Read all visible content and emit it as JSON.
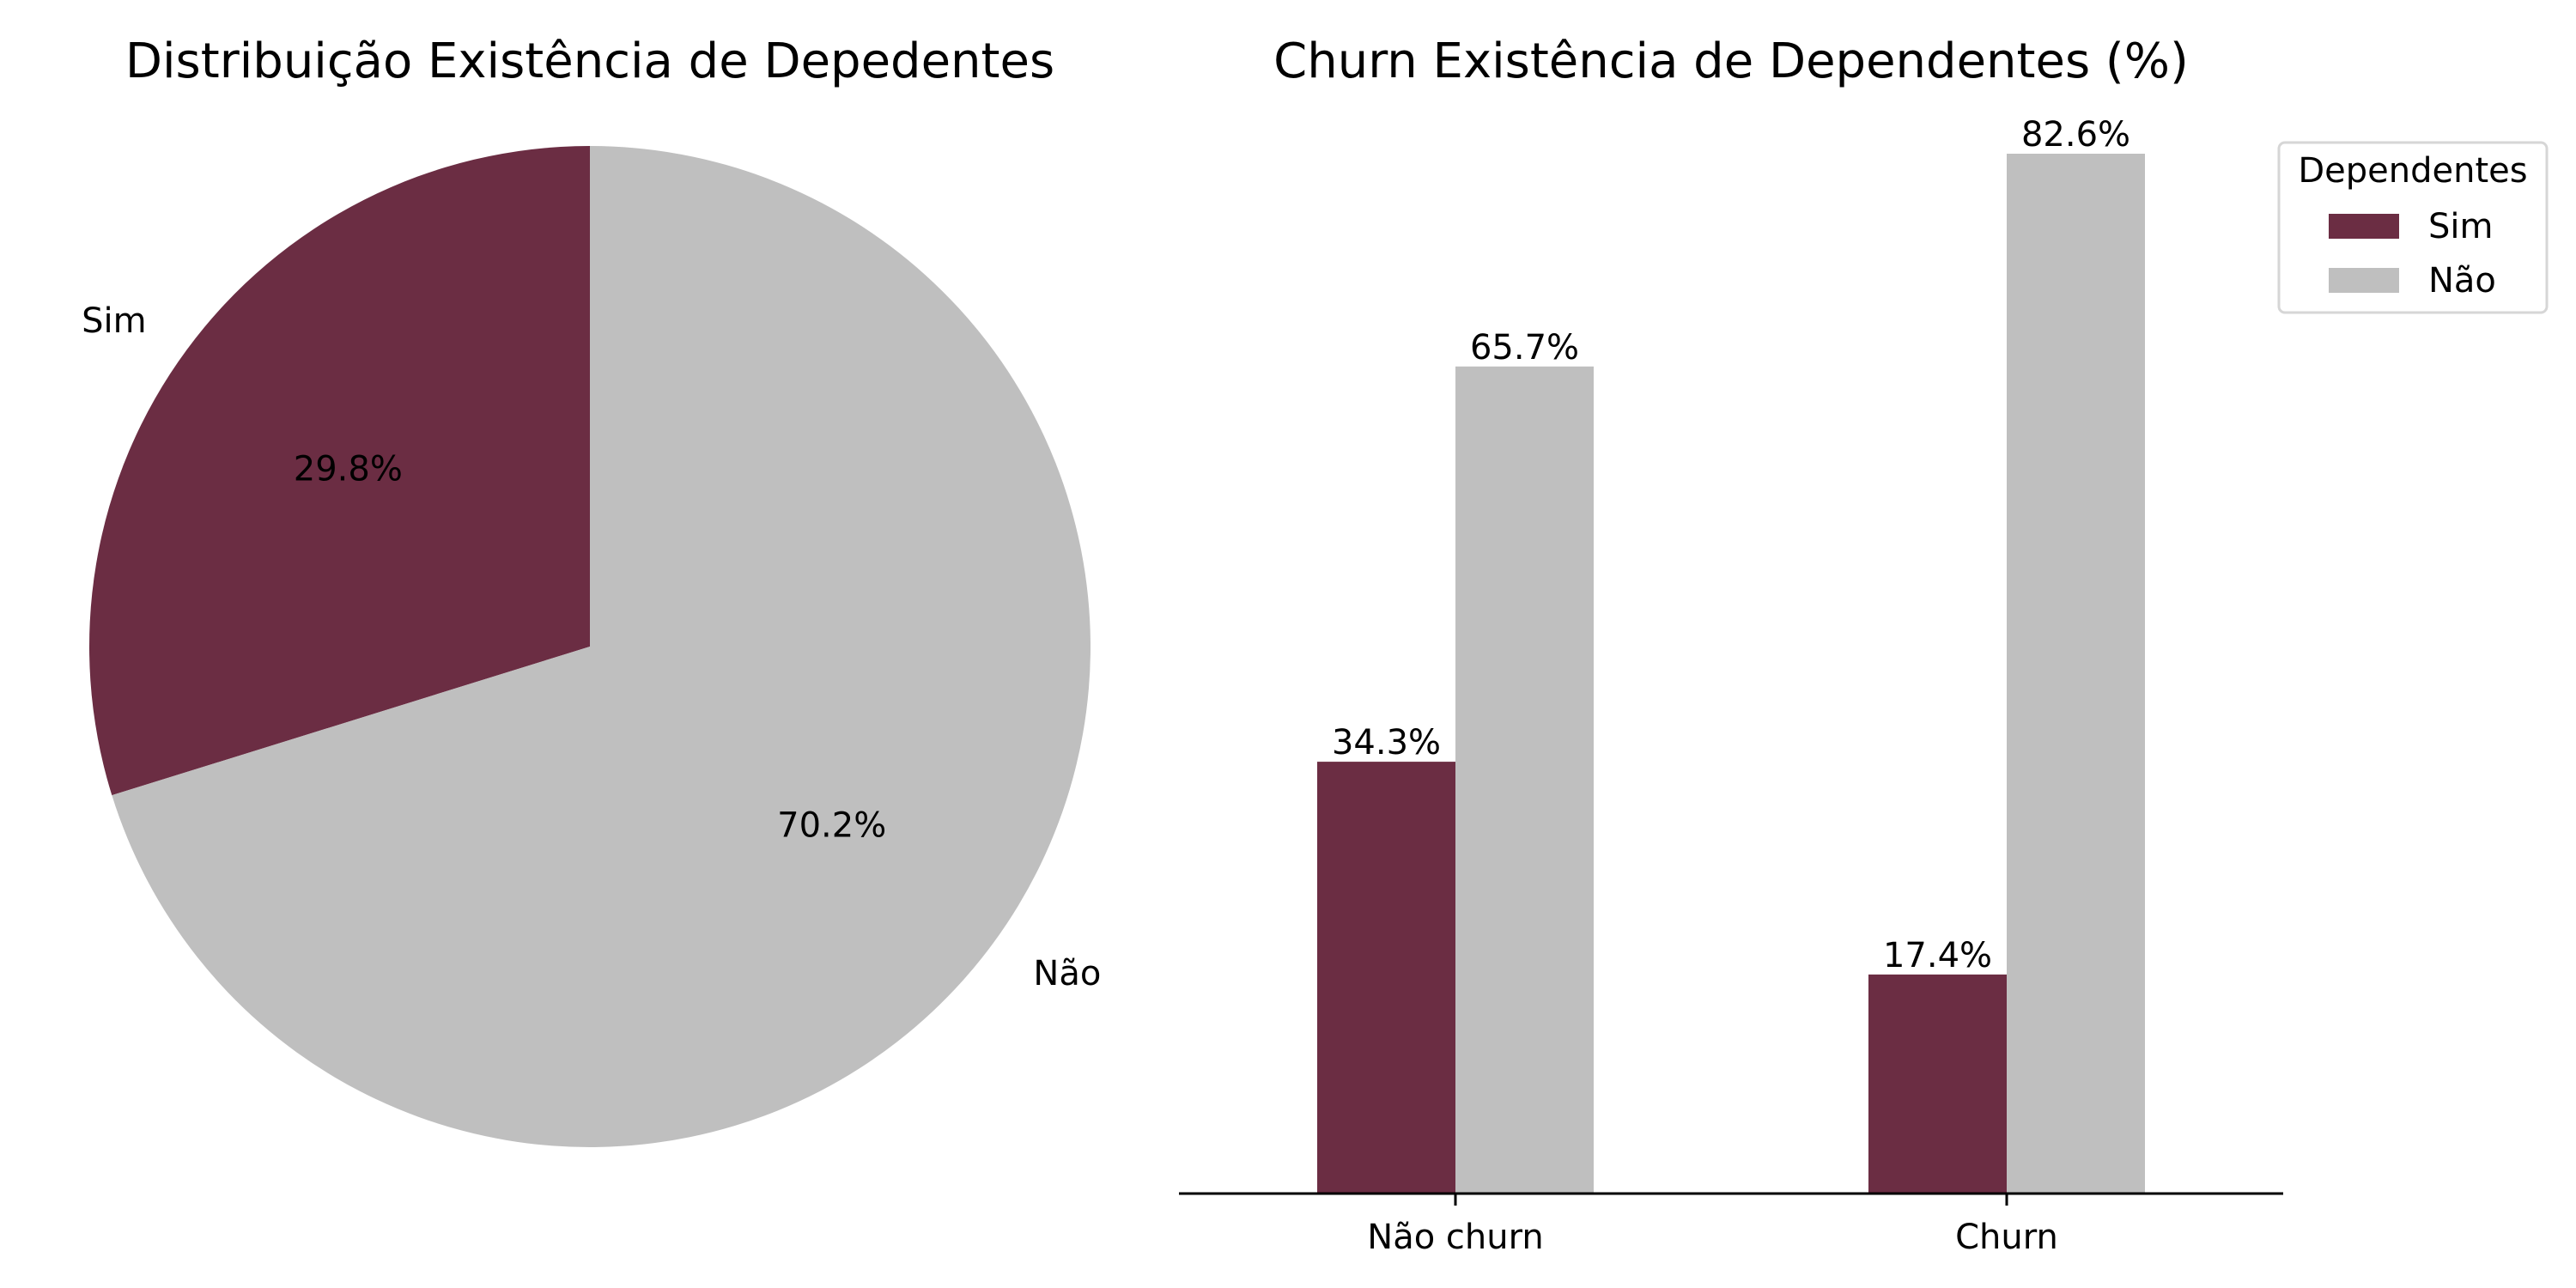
{
  "colors": {
    "sim": "#6b2d43",
    "nao": "#bfbfbf"
  },
  "chart_data": [
    {
      "type": "pie",
      "title": "Distribuição Existência de Depedentes",
      "slices": [
        {
          "label": "Sim",
          "value": 29.8,
          "pct_label": "29.8%",
          "color": "#6b2d43"
        },
        {
          "label": "Não",
          "value": 70.2,
          "pct_label": "70.2%",
          "color": "#bfbfbf"
        }
      ],
      "start_angle_deg": 90,
      "direction": "counterclockwise"
    },
    {
      "type": "bar",
      "title": "Churn Existência de Dependentes (%)",
      "categories": [
        "Não churn",
        "Churn"
      ],
      "series": [
        {
          "name": "Sim",
          "values": [
            34.3,
            17.4
          ],
          "labels": [
            "34.3%",
            "17.4%"
          ],
          "color": "#6b2d43"
        },
        {
          "name": "Não",
          "values": [
            65.7,
            82.6
          ],
          "labels": [
            "65.7%",
            "82.6%"
          ],
          "color": "#bfbfbf"
        }
      ],
      "ylim": [
        0,
        82.6
      ],
      "legend": {
        "title": "Dependentes",
        "placement": "upper-right-outside",
        "entries": [
          "Sim",
          "Não"
        ]
      },
      "xlabel": "",
      "ylabel": "",
      "grid": false
    }
  ]
}
